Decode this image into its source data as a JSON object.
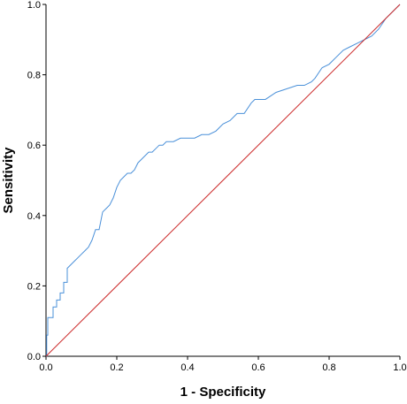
{
  "chart_data": {
    "type": "line",
    "title": "",
    "xlabel": "1 - Specificity",
    "ylabel": "Sensitivity",
    "xlim": [
      0,
      1
    ],
    "ylim": [
      0,
      1
    ],
    "xticks": [
      "0.0",
      "0.2",
      "0.4",
      "0.6",
      "0.8",
      "1.0"
    ],
    "yticks": [
      "0.0",
      "0.2",
      "0.4",
      "0.6",
      "0.8",
      "1.0"
    ],
    "grid": false,
    "legend": "none",
    "series": [
      {
        "color": "#4a90d9",
        "x": [
          0,
          0.002,
          0.002,
          0.005,
          0.005,
          0.02,
          0.02,
          0.03,
          0.03,
          0.04,
          0.04,
          0.05,
          0.05,
          0.06,
          0.06,
          0.07,
          0.08,
          0.09,
          0.1,
          0.11,
          0.12,
          0.13,
          0.14,
          0.15,
          0.16,
          0.17,
          0.18,
          0.19,
          0.2,
          0.21,
          0.22,
          0.23,
          0.24,
          0.25,
          0.26,
          0.27,
          0.28,
          0.29,
          0.3,
          0.31,
          0.32,
          0.33,
          0.34,
          0.36,
          0.38,
          0.4,
          0.42,
          0.44,
          0.46,
          0.48,
          0.5,
          0.52,
          0.54,
          0.56,
          0.58,
          0.59,
          0.62,
          0.65,
          0.68,
          0.71,
          0.73,
          0.75,
          0.76,
          0.78,
          0.8,
          0.82,
          0.84,
          0.86,
          0.88,
          0.9,
          0.92,
          0.94,
          0.96,
          0.98,
          1.0
        ],
        "y": [
          0,
          0,
          0.06,
          0.06,
          0.11,
          0.11,
          0.14,
          0.14,
          0.16,
          0.16,
          0.18,
          0.18,
          0.21,
          0.21,
          0.25,
          0.26,
          0.27,
          0.28,
          0.29,
          0.3,
          0.31,
          0.33,
          0.36,
          0.36,
          0.41,
          0.42,
          0.43,
          0.45,
          0.48,
          0.5,
          0.51,
          0.52,
          0.52,
          0.53,
          0.55,
          0.56,
          0.57,
          0.58,
          0.58,
          0.59,
          0.6,
          0.6,
          0.61,
          0.61,
          0.62,
          0.62,
          0.62,
          0.63,
          0.63,
          0.64,
          0.66,
          0.67,
          0.69,
          0.69,
          0.72,
          0.73,
          0.73,
          0.75,
          0.76,
          0.77,
          0.77,
          0.78,
          0.79,
          0.82,
          0.83,
          0.85,
          0.87,
          0.88,
          0.89,
          0.9,
          0.91,
          0.93,
          0.96,
          0.98,
          1.0
        ]
      },
      {
        "color": "#cc2a2a",
        "x": [
          0,
          1
        ],
        "y": [
          0,
          1
        ]
      }
    ]
  }
}
